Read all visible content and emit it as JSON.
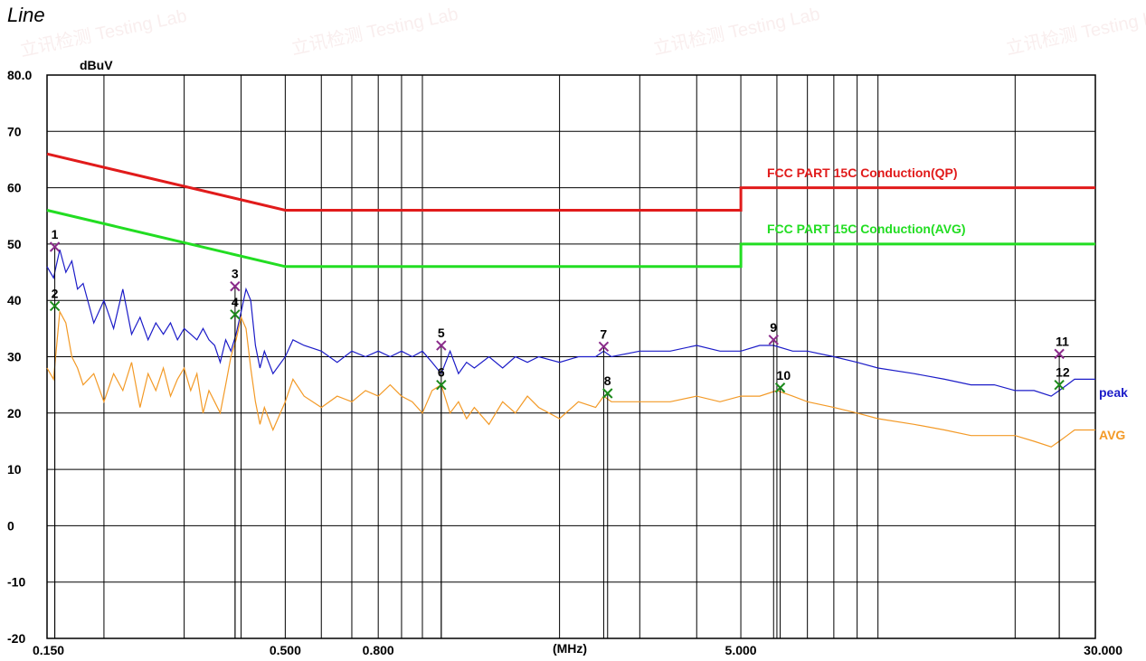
{
  "page_title": "Line",
  "watermark": "立讯检测 Testing Lab",
  "chart_data": {
    "type": "line",
    "ylabel": "dBuV",
    "xlabel": "(MHz)",
    "x_scale": "log",
    "xlim": [
      0.15,
      30.0
    ],
    "ylim": [
      -20,
      80
    ],
    "y_ticks": [
      80,
      70,
      60,
      50,
      40,
      30,
      20,
      10,
      0,
      -10,
      -20
    ],
    "y_tick_labels": [
      "80.0",
      "70",
      "60",
      "50",
      "40",
      "30",
      "20",
      "10",
      "0",
      "-10",
      "-20"
    ],
    "x_tick_labels": [
      {
        "x": 0.15,
        "label": "0.150"
      },
      {
        "x": 0.5,
        "label": "0.500"
      },
      {
        "x": 0.8,
        "label": "0.800"
      },
      {
        "x": 5.0,
        "label": "5.000"
      },
      {
        "x": 30.0,
        "label": "30.000"
      }
    ],
    "grid": true,
    "colors": {
      "qp_limit": "#e11b1b",
      "avg_limit": "#22dd22",
      "peak": "#1c1cc8",
      "avg": "#f39a27",
      "marker_peak": "#8a2b8a",
      "marker_avg": "#1b8a1b",
      "label_text": "#000000"
    },
    "limits": [
      {
        "name": "FCC PART 15C  Conduction(QP)",
        "points": [
          [
            0.15,
            66
          ],
          [
            0.5,
            56
          ],
          [
            5.0,
            56
          ],
          [
            5.0,
            60
          ],
          [
            30.0,
            60
          ]
        ]
      },
      {
        "name": "FCC PART 15C  Conduction(AVG)",
        "points": [
          [
            0.15,
            56
          ],
          [
            0.5,
            46
          ],
          [
            5.0,
            46
          ],
          [
            5.0,
            50
          ],
          [
            30.0,
            50
          ]
        ]
      }
    ],
    "series": [
      {
        "name": "peak",
        "points": [
          [
            0.15,
            46
          ],
          [
            0.155,
            44
          ],
          [
            0.16,
            49
          ],
          [
            0.165,
            45
          ],
          [
            0.17,
            47
          ],
          [
            0.175,
            42
          ],
          [
            0.18,
            43
          ],
          [
            0.19,
            36
          ],
          [
            0.2,
            40
          ],
          [
            0.21,
            35
          ],
          [
            0.22,
            42
          ],
          [
            0.23,
            34
          ],
          [
            0.24,
            37
          ],
          [
            0.25,
            33
          ],
          [
            0.26,
            36
          ],
          [
            0.27,
            34
          ],
          [
            0.28,
            36
          ],
          [
            0.29,
            33
          ],
          [
            0.3,
            35
          ],
          [
            0.31,
            34
          ],
          [
            0.32,
            33
          ],
          [
            0.33,
            35
          ],
          [
            0.34,
            33
          ],
          [
            0.35,
            32
          ],
          [
            0.36,
            29
          ],
          [
            0.37,
            33
          ],
          [
            0.38,
            31
          ],
          [
            0.39,
            34
          ],
          [
            0.4,
            38
          ],
          [
            0.41,
            42
          ],
          [
            0.42,
            40
          ],
          [
            0.43,
            32
          ],
          [
            0.44,
            28
          ],
          [
            0.45,
            31
          ],
          [
            0.47,
            27
          ],
          [
            0.5,
            30
          ],
          [
            0.52,
            33
          ],
          [
            0.55,
            32
          ],
          [
            0.6,
            31
          ],
          [
            0.65,
            29
          ],
          [
            0.7,
            31
          ],
          [
            0.75,
            30
          ],
          [
            0.8,
            31
          ],
          [
            0.85,
            30
          ],
          [
            0.9,
            31
          ],
          [
            0.95,
            30
          ],
          [
            1.0,
            31
          ],
          [
            1.05,
            29
          ],
          [
            1.1,
            27
          ],
          [
            1.15,
            31
          ],
          [
            1.2,
            27
          ],
          [
            1.25,
            29
          ],
          [
            1.3,
            28
          ],
          [
            1.4,
            30
          ],
          [
            1.5,
            28
          ],
          [
            1.6,
            30
          ],
          [
            1.7,
            29
          ],
          [
            1.8,
            30
          ],
          [
            2.0,
            29
          ],
          [
            2.2,
            30
          ],
          [
            2.4,
            30
          ],
          [
            2.5,
            31
          ],
          [
            2.6,
            30
          ],
          [
            3.0,
            31
          ],
          [
            3.5,
            31
          ],
          [
            4.0,
            32
          ],
          [
            4.5,
            31
          ],
          [
            5.0,
            31
          ],
          [
            5.5,
            32
          ],
          [
            5.9,
            32
          ],
          [
            6.5,
            31
          ],
          [
            7.0,
            31
          ],
          [
            8.0,
            30
          ],
          [
            9.0,
            29
          ],
          [
            10.0,
            28
          ],
          [
            12.0,
            27
          ],
          [
            14.0,
            26
          ],
          [
            16.0,
            25
          ],
          [
            18.0,
            25
          ],
          [
            20.0,
            24
          ],
          [
            22.0,
            24
          ],
          [
            24.0,
            23
          ],
          [
            25.0,
            24
          ],
          [
            26.0,
            25
          ],
          [
            27.0,
            26
          ],
          [
            28.0,
            26
          ],
          [
            30.0,
            26
          ]
        ]
      },
      {
        "name": "AVG",
        "points": [
          [
            0.15,
            28
          ],
          [
            0.155,
            26
          ],
          [
            0.16,
            38
          ],
          [
            0.165,
            36
          ],
          [
            0.17,
            30
          ],
          [
            0.175,
            28
          ],
          [
            0.18,
            25
          ],
          [
            0.19,
            27
          ],
          [
            0.2,
            22
          ],
          [
            0.21,
            27
          ],
          [
            0.22,
            24
          ],
          [
            0.23,
            29
          ],
          [
            0.24,
            21
          ],
          [
            0.25,
            27
          ],
          [
            0.26,
            24
          ],
          [
            0.27,
            28
          ],
          [
            0.28,
            23
          ],
          [
            0.29,
            26
          ],
          [
            0.3,
            28
          ],
          [
            0.31,
            24
          ],
          [
            0.32,
            27
          ],
          [
            0.33,
            20
          ],
          [
            0.34,
            24
          ],
          [
            0.35,
            22
          ],
          [
            0.36,
            20
          ],
          [
            0.37,
            25
          ],
          [
            0.38,
            30
          ],
          [
            0.39,
            33
          ],
          [
            0.4,
            37
          ],
          [
            0.41,
            35
          ],
          [
            0.42,
            28
          ],
          [
            0.43,
            22
          ],
          [
            0.44,
            18
          ],
          [
            0.45,
            21
          ],
          [
            0.47,
            17
          ],
          [
            0.5,
            22
          ],
          [
            0.52,
            26
          ],
          [
            0.55,
            23
          ],
          [
            0.6,
            21
          ],
          [
            0.65,
            23
          ],
          [
            0.7,
            22
          ],
          [
            0.75,
            24
          ],
          [
            0.8,
            23
          ],
          [
            0.85,
            25
          ],
          [
            0.9,
            23
          ],
          [
            0.95,
            22
          ],
          [
            1.0,
            20
          ],
          [
            1.05,
            24
          ],
          [
            1.1,
            25
          ],
          [
            1.15,
            20
          ],
          [
            1.2,
            22
          ],
          [
            1.25,
            19
          ],
          [
            1.3,
            21
          ],
          [
            1.4,
            18
          ],
          [
            1.5,
            22
          ],
          [
            1.6,
            20
          ],
          [
            1.7,
            23
          ],
          [
            1.8,
            21
          ],
          [
            2.0,
            19
          ],
          [
            2.2,
            22
          ],
          [
            2.4,
            21
          ],
          [
            2.5,
            23
          ],
          [
            2.6,
            22
          ],
          [
            3.0,
            22
          ],
          [
            3.5,
            22
          ],
          [
            4.0,
            23
          ],
          [
            4.5,
            22
          ],
          [
            5.0,
            23
          ],
          [
            5.5,
            23
          ],
          [
            6.0,
            24
          ],
          [
            6.5,
            23
          ],
          [
            7.0,
            22
          ],
          [
            8.0,
            21
          ],
          [
            9.0,
            20
          ],
          [
            10.0,
            19
          ],
          [
            12.0,
            18
          ],
          [
            14.0,
            17
          ],
          [
            16.0,
            16
          ],
          [
            18.0,
            16
          ],
          [
            20.0,
            16
          ],
          [
            22.0,
            15
          ],
          [
            24.0,
            14
          ],
          [
            25.0,
            15
          ],
          [
            26.0,
            16
          ],
          [
            27.0,
            17
          ],
          [
            28.0,
            17
          ],
          [
            30.0,
            17
          ]
        ]
      }
    ],
    "markers": [
      {
        "label": "1",
        "x": 0.156,
        "y": 49.5,
        "kind": "peak"
      },
      {
        "label": "2",
        "x": 0.156,
        "y": 39.0,
        "kind": "avg"
      },
      {
        "label": "3",
        "x": 0.388,
        "y": 42.5,
        "kind": "peak"
      },
      {
        "label": "4",
        "x": 0.388,
        "y": 37.5,
        "kind": "avg"
      },
      {
        "label": "5",
        "x": 1.1,
        "y": 32.0,
        "kind": "peak"
      },
      {
        "label": "6",
        "x": 1.1,
        "y": 25.0,
        "kind": "avg"
      },
      {
        "label": "7",
        "x": 2.5,
        "y": 31.8,
        "kind": "peak"
      },
      {
        "label": "8",
        "x": 2.55,
        "y": 23.5,
        "kind": "avg"
      },
      {
        "label": "9",
        "x": 5.9,
        "y": 33.0,
        "kind": "peak"
      },
      {
        "label": "10",
        "x": 6.1,
        "y": 24.5,
        "kind": "avg"
      },
      {
        "label": "11",
        "x": 25.0,
        "y": 30.5,
        "kind": "peak"
      },
      {
        "label": "12",
        "x": 25.0,
        "y": 25.0,
        "kind": "avg"
      }
    ]
  }
}
